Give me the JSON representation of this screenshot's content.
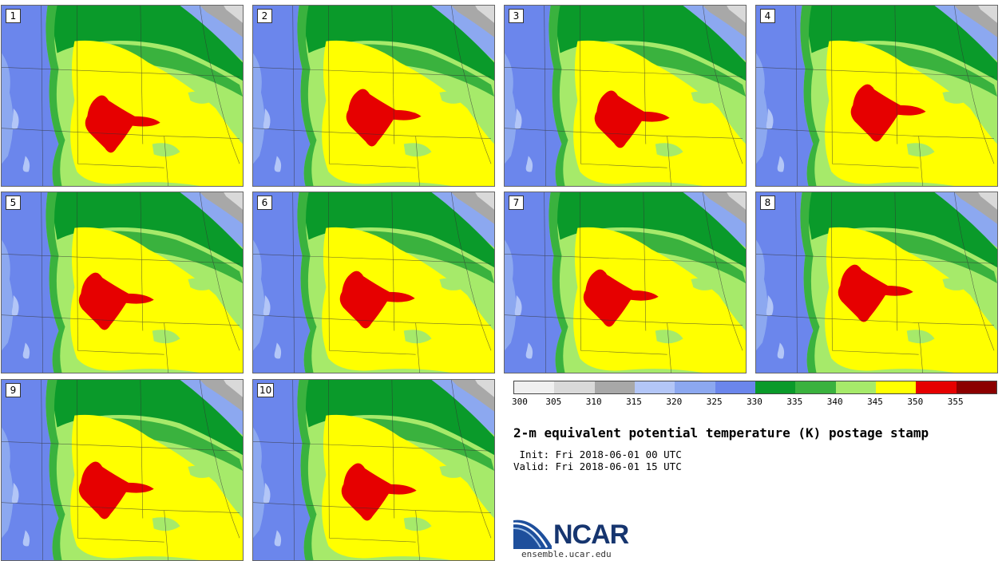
{
  "panels": [
    {
      "label": "1"
    },
    {
      "label": "2"
    },
    {
      "label": "3"
    },
    {
      "label": "4"
    },
    {
      "label": "5"
    },
    {
      "label": "6"
    },
    {
      "label": "7"
    },
    {
      "label": "8"
    },
    {
      "label": "9"
    },
    {
      "label": "10"
    }
  ],
  "colorbar": {
    "colors": [
      "#f0f0f0",
      "#d9d9d9",
      "#a8a8a8",
      "#b3c6f7",
      "#8ca8f0",
      "#6b86ec",
      "#0a9a2a",
      "#3ab23e",
      "#a6ea6a",
      "#ffff00",
      "#e60000",
      "#8b0000"
    ],
    "tick_labels": [
      "300",
      "305",
      "310",
      "315",
      "320",
      "325",
      "330",
      "335",
      "340",
      "345",
      "350",
      "355"
    ]
  },
  "title": "2-m equivalent potential temperature (K) postage stamp",
  "init_line": " Init: Fri 2018-06-01 00 UTC",
  "valid_line": "Valid: Fri 2018-06-01 15 UTC",
  "logo": {
    "text": "NCAR",
    "url": "ensemble.ucar.edu"
  }
}
